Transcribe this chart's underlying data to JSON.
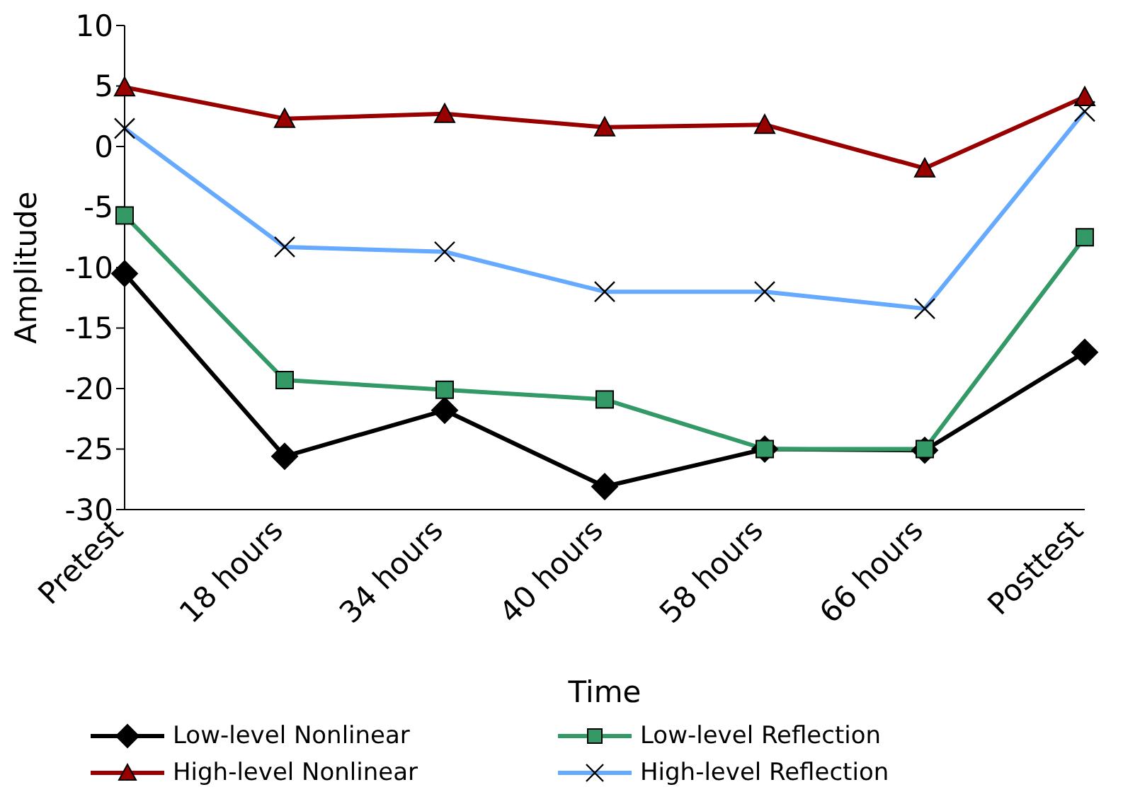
{
  "chart_data": {
    "type": "line",
    "xlabel": "Time",
    "ylabel": "Amplitude",
    "categories": [
      "Pretest",
      "18 hours",
      "34 hours",
      "40 hours",
      "58 hours",
      "66 hours",
      "Posttest"
    ],
    "ylim": [
      -30,
      10
    ],
    "yticks": [
      -30,
      -25,
      -20,
      -15,
      -10,
      -5,
      0,
      5,
      10
    ],
    "grid": false,
    "legend": "bottom",
    "series": [
      {
        "name": "Low-level Nonlinear",
        "color": "#000000",
        "marker": "diamond",
        "values": [
          -10.5,
          -25.6,
          -21.8,
          -28.1,
          -25,
          -25.1,
          -17
        ]
      },
      {
        "name": "Low-level Reflection",
        "color": "#339966",
        "marker": "square",
        "values": [
          -5.7,
          -19.3,
          -20.1,
          -20.9,
          -25,
          -25,
          -7.5
        ]
      },
      {
        "name": "High-level Nonlinear",
        "color": "#990000",
        "marker": "triangle",
        "values": [
          4.9,
          2.3,
          2.7,
          1.6,
          1.8,
          -1.8,
          4.1
        ]
      },
      {
        "name": "High-level Reflection",
        "color": "#66aaff",
        "marker": "cross",
        "values": [
          1.5,
          -8.3,
          -8.7,
          -12,
          -12,
          -13.4,
          2.9
        ]
      }
    ]
  }
}
